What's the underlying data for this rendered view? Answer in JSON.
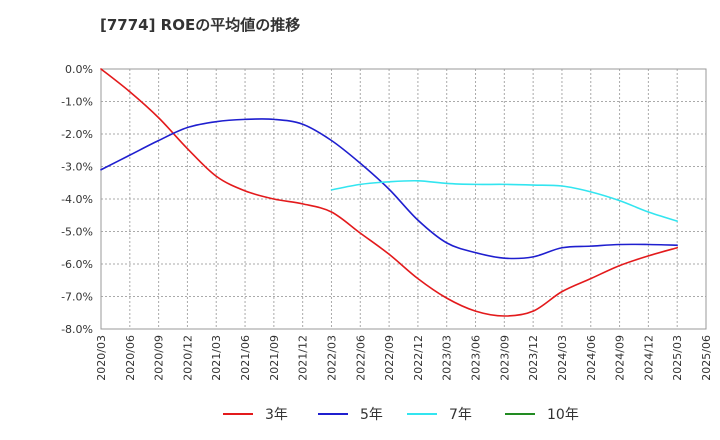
{
  "chart_data": {
    "type": "line",
    "title": "[7774]  ROEの平均値の推移",
    "xlabel": "",
    "ylabel": "",
    "ylim": [
      -8.0,
      0.0
    ],
    "yticks": [
      0,
      -1,
      -2,
      -3,
      -4,
      -5,
      -6,
      -7,
      -8
    ],
    "ytick_labels": [
      "0.0%",
      "-1.0%",
      "-2.0%",
      "-3.0%",
      "-4.0%",
      "-5.0%",
      "-6.0%",
      "-7.0%",
      "-8.0%"
    ],
    "x": [
      "2020/03",
      "2020/06",
      "2020/09",
      "2020/12",
      "2021/03",
      "2021/06",
      "2021/09",
      "2021/12",
      "2022/03",
      "2022/06",
      "2022/09",
      "2022/12",
      "2023/03",
      "2023/06",
      "2023/09",
      "2023/12",
      "2024/03",
      "2024/06",
      "2024/09",
      "2024/12",
      "2025/03",
      "2025/06"
    ],
    "grid": true,
    "legend_position": "bottom",
    "series": [
      {
        "name": "3年",
        "color": "#e31a1c",
        "values": [
          0.0,
          -0.7,
          -1.5,
          -2.45,
          -3.3,
          -3.75,
          -4.0,
          -4.15,
          -4.4,
          -5.05,
          -5.7,
          -6.45,
          -7.05,
          -7.45,
          -7.6,
          -7.45,
          -6.85,
          -6.45,
          -6.05,
          -5.75,
          -5.5,
          null
        ]
      },
      {
        "name": "5年",
        "color": "#1f1fcf",
        "values": [
          -3.1,
          -2.65,
          -2.2,
          -1.8,
          -1.62,
          -1.55,
          -1.55,
          -1.7,
          -2.2,
          -2.9,
          -3.7,
          -4.65,
          -5.35,
          -5.65,
          -5.82,
          -5.78,
          -5.5,
          -5.45,
          -5.4,
          -5.4,
          -5.42,
          null
        ]
      },
      {
        "name": "7年",
        "color": "#33e5f0",
        "values": [
          null,
          null,
          null,
          null,
          null,
          null,
          null,
          null,
          -3.72,
          -3.55,
          -3.47,
          -3.44,
          -3.52,
          -3.55,
          -3.55,
          -3.57,
          -3.6,
          -3.78,
          -4.05,
          -4.4,
          -4.68,
          null
        ]
      },
      {
        "name": "10年",
        "color": "#228b22",
        "values": [
          null,
          null,
          null,
          null,
          null,
          null,
          null,
          null,
          null,
          null,
          null,
          null,
          null,
          null,
          null,
          null,
          null,
          null,
          null,
          null,
          null,
          null
        ]
      }
    ]
  }
}
